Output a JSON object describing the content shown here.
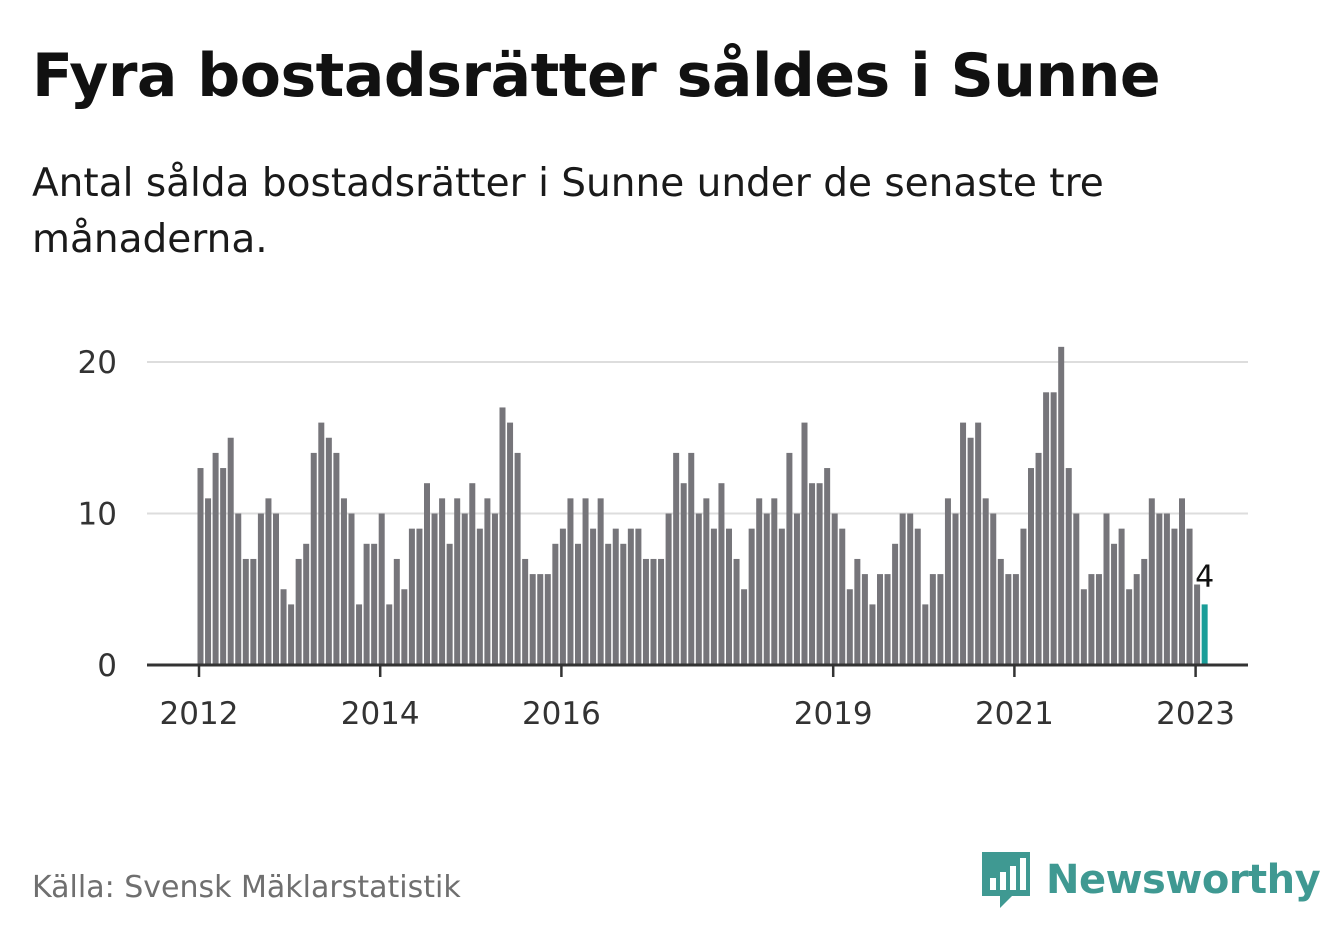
{
  "title": "Fyra bostadsrätter såldes i Sunne",
  "subtitle": "Antal sålda bostadsrätter i Sunne under de senaste tre månaderna.",
  "source": "Källa: Svensk Mäklarstatistik",
  "logo": {
    "text": "Newsworthy",
    "icon": "bar-chart-speech-bubble-icon",
    "color": "#3f9992"
  },
  "colors": {
    "bar": "#76757a",
    "highlight": "#1a9d98",
    "grid": "#dddddd",
    "axis": "#333333"
  },
  "chart_data": {
    "type": "bar",
    "title": "Fyra bostadsrätter såldes i Sunne",
    "xlabel": "",
    "ylabel": "",
    "ylim": [
      0,
      20
    ],
    "yticks": [
      0,
      10,
      20
    ],
    "xticks": [
      "2012",
      "2014",
      "2016",
      "2019",
      "2021",
      "2023"
    ],
    "xtick_index": [
      0,
      24,
      48,
      84,
      108,
      132
    ],
    "grid": true,
    "highlight_label": "4",
    "values": [
      13,
      11,
      14,
      13,
      15,
      10,
      7,
      7,
      10,
      11,
      10,
      5,
      4,
      7,
      8,
      14,
      16,
      15,
      14,
      11,
      10,
      4,
      8,
      8,
      10,
      4,
      7,
      5,
      9,
      9,
      12,
      10,
      11,
      8,
      11,
      10,
      12,
      9,
      11,
      10,
      17,
      16,
      14,
      7,
      6,
      6,
      6,
      8,
      9,
      11,
      8,
      11,
      9,
      11,
      8,
      9,
      8,
      9,
      9,
      7,
      7,
      7,
      10,
      14,
      12,
      14,
      10,
      11,
      9,
      12,
      9,
      7,
      5,
      9,
      11,
      10,
      11,
      9,
      14,
      10,
      16,
      12,
      12,
      13,
      10,
      9,
      5,
      7,
      6,
      4,
      6,
      6,
      8,
      10,
      10,
      9,
      4,
      6,
      6,
      11,
      10,
      16,
      15,
      16,
      11,
      10,
      7,
      6,
      6,
      9,
      13,
      14,
      18,
      18,
      21,
      13,
      10,
      5,
      6,
      6,
      10,
      8,
      9,
      5,
      6,
      7,
      11,
      10,
      10,
      9,
      11,
      9,
      5.5,
      4
    ],
    "highlight_index": 133
  }
}
